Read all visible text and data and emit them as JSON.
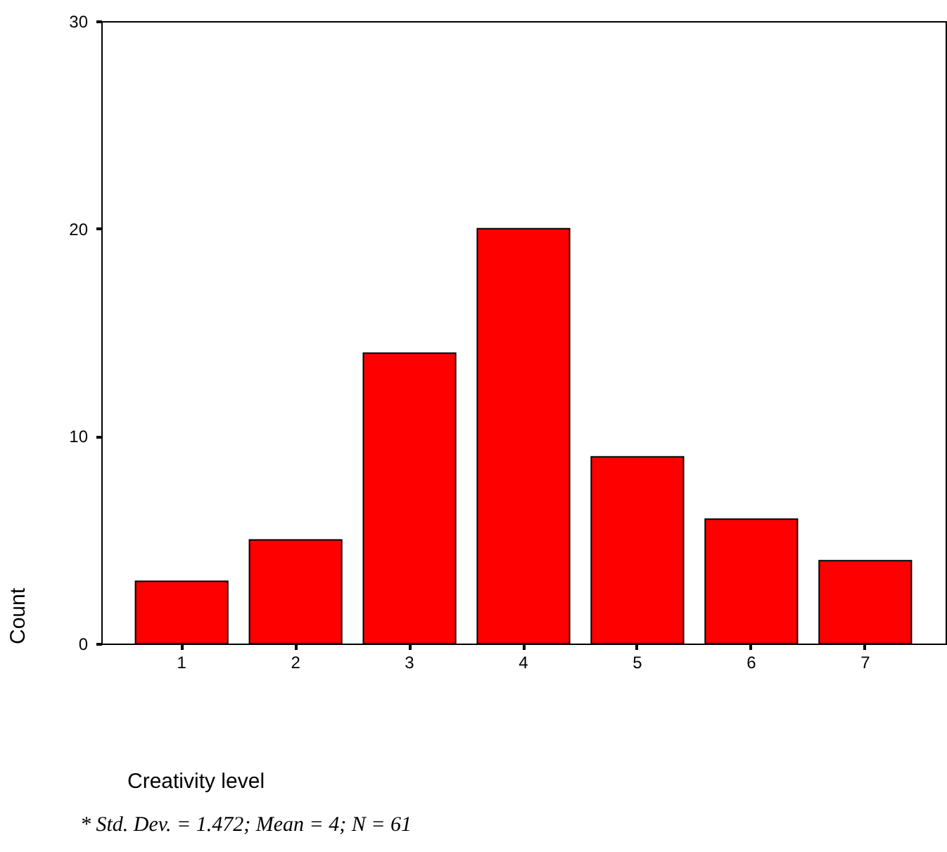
{
  "chart_data": {
    "type": "bar",
    "xlabel": "Creativity level",
    "ylabel": "Count",
    "categories": [
      "1",
      "2",
      "3",
      "4",
      "5",
      "6",
      "7"
    ],
    "values": [
      3,
      5,
      14,
      20,
      9,
      6,
      4
    ],
    "color": "#ff0000",
    "ylim": [
      0,
      30
    ],
    "yticks": [
      0,
      10,
      20,
      30
    ],
    "grid": false,
    "annotations": [
      "* Std. Dev. = 1.472;  Mean = 4;  N = 61"
    ]
  }
}
